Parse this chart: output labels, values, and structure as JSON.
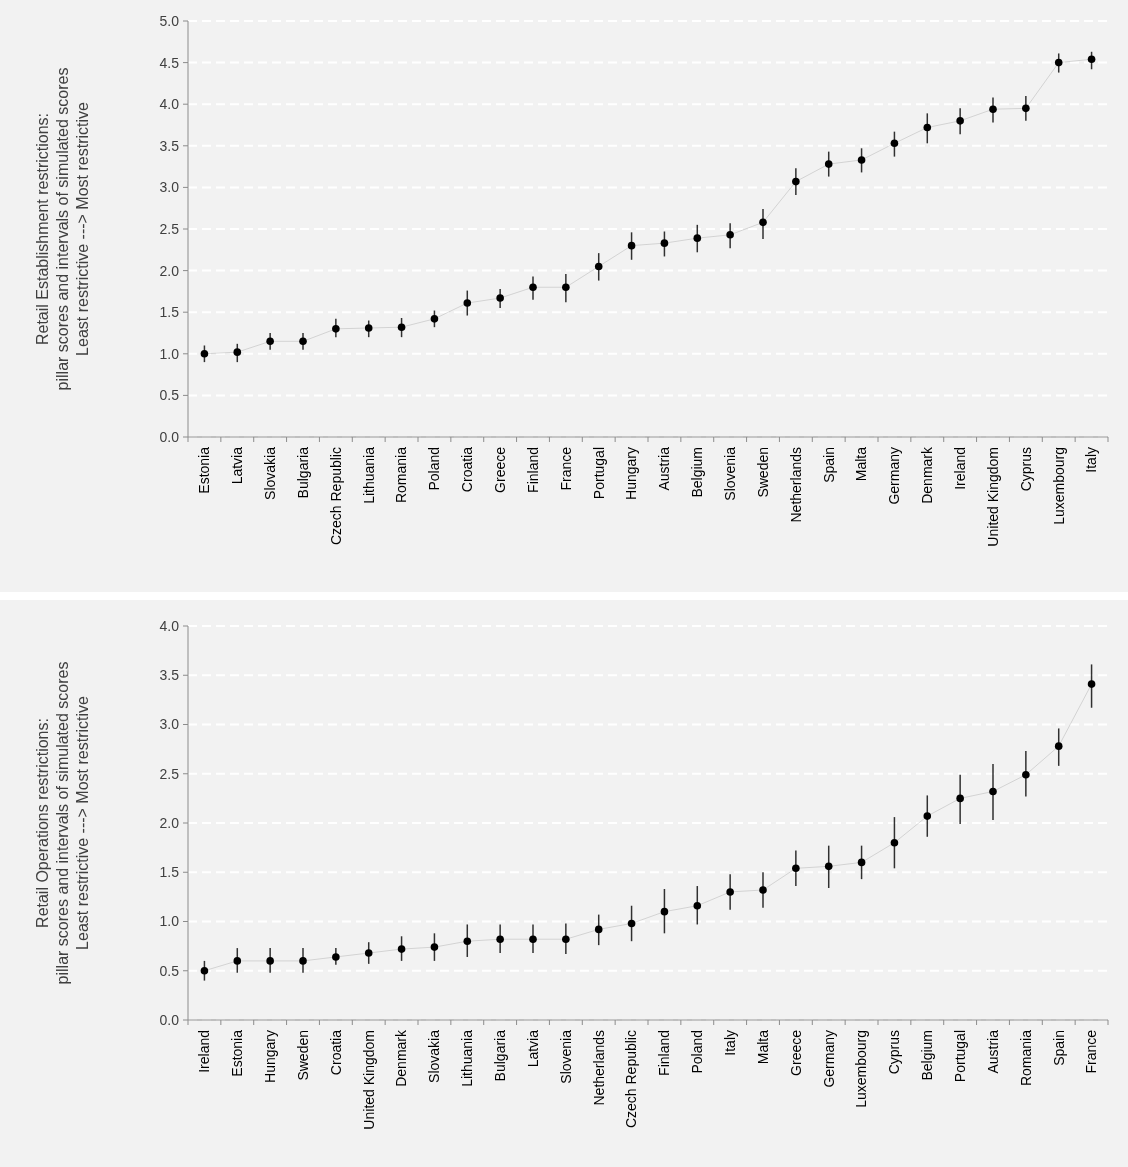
{
  "chart_data": [
    {
      "type": "line",
      "ylabel": "Retail Establishment restrictions:\npillar scores and intervals of simulated scores\nLeast restrictive ---> Most restrictive",
      "categories": [
        "Estonia",
        "Latvia",
        "Slovakia",
        "Bulgaria",
        "Czech Republic",
        "Lithuania",
        "Romania",
        "Poland",
        "Croatia",
        "Greece",
        "Finland",
        "France",
        "Portugal",
        "Hungary",
        "Austria",
        "Belgium",
        "Slovenia",
        "Sweden",
        "Netherlands",
        "Spain",
        "Malta",
        "Germany",
        "Denmark",
        "Ireland",
        "United Kingdom",
        "Cyprus",
        "Luxembourg",
        "Italy"
      ],
      "series": [
        {
          "color": "#000000",
          "values": [
            1.0,
            1.02,
            1.15,
            1.15,
            1.3,
            1.31,
            1.32,
            1.42,
            1.61,
            1.67,
            1.8,
            1.8,
            2.05,
            2.3,
            2.33,
            2.39,
            2.43,
            2.58,
            3.07,
            3.28,
            3.33,
            3.53,
            3.72,
            3.8,
            3.94,
            3.95,
            4.5,
            4.54
          ],
          "errors": [
            [
              0.9,
              1.1
            ],
            [
              0.9,
              1.12
            ],
            [
              1.05,
              1.25
            ],
            [
              1.05,
              1.25
            ],
            [
              1.2,
              1.42
            ],
            [
              1.2,
              1.4
            ],
            [
              1.2,
              1.43
            ],
            [
              1.32,
              1.52
            ],
            [
              1.46,
              1.76
            ],
            [
              1.55,
              1.78
            ],
            [
              1.65,
              1.93
            ],
            [
              1.62,
              1.96
            ],
            [
              1.88,
              2.21
            ],
            [
              2.13,
              2.46
            ],
            [
              2.17,
              2.47
            ],
            [
              2.22,
              2.55
            ],
            [
              2.27,
              2.57
            ],
            [
              2.38,
              2.74
            ],
            [
              2.91,
              3.23
            ],
            [
              3.13,
              3.43
            ],
            [
              3.18,
              3.47
            ],
            [
              3.37,
              3.67
            ],
            [
              3.53,
              3.89
            ],
            [
              3.64,
              3.95
            ],
            [
              3.78,
              4.08
            ],
            [
              3.8,
              4.1
            ],
            [
              4.38,
              4.61
            ],
            [
              4.42,
              4.63
            ]
          ]
        }
      ],
      "ylim": [
        0,
        5
      ],
      "yticks": [
        {
          "value": 0,
          "label": "0.0"
        },
        {
          "value": 0.5,
          "label": "0.5"
        },
        {
          "value": 1,
          "label": "1.0"
        },
        {
          "value": 1.5,
          "label": "1.5"
        },
        {
          "value": 2,
          "label": "2.0"
        },
        {
          "value": 2.5,
          "label": "2.5"
        },
        {
          "value": 3,
          "label": "3.0"
        },
        {
          "value": 3.5,
          "label": "3.5"
        },
        {
          "value": 4,
          "label": "4.0"
        },
        {
          "value": 4.5,
          "label": "4.5"
        },
        {
          "value": 5,
          "label": "5.0"
        }
      ],
      "grid": "y",
      "marker": "circle"
    },
    {
      "type": "line",
      "ylabel": "Retail Operations restrictions:\npillar scores and intervals of simulated scores\nLeast restrictive ---> Most restrictive",
      "categories": [
        "Ireland",
        "Estonia",
        "Hungary",
        "Sweden",
        "Croatia",
        "United Kingdom",
        "Denmark",
        "Slovakia",
        "Lithuania",
        "Bulgaria",
        "Latvia",
        "Slovenia",
        "Netherlands",
        "Czech Republic",
        "Finland",
        "Poland",
        "Italy",
        "Malta",
        "Greece",
        "Germany",
        "Luxembourg",
        "Cyprus",
        "Belgium",
        "Portugal",
        "Austria",
        "Romania",
        "Spain",
        "France"
      ],
      "series": [
        {
          "color": "#000000",
          "values": [
            0.5,
            0.6,
            0.6,
            0.6,
            0.64,
            0.68,
            0.72,
            0.74,
            0.8,
            0.82,
            0.82,
            0.82,
            0.92,
            0.98,
            1.1,
            1.16,
            1.3,
            1.32,
            1.54,
            1.56,
            1.6,
            1.8,
            2.07,
            2.25,
            2.32,
            2.49,
            2.78,
            3.41
          ],
          "errors": [
            [
              0.4,
              0.6
            ],
            [
              0.48,
              0.73
            ],
            [
              0.48,
              0.73
            ],
            [
              0.48,
              0.73
            ],
            [
              0.56,
              0.73
            ],
            [
              0.57,
              0.79
            ],
            [
              0.6,
              0.85
            ],
            [
              0.6,
              0.88
            ],
            [
              0.64,
              0.97
            ],
            [
              0.68,
              0.97
            ],
            [
              0.68,
              0.97
            ],
            [
              0.67,
              0.98
            ],
            [
              0.76,
              1.07
            ],
            [
              0.8,
              1.16
            ],
            [
              0.88,
              1.33
            ],
            [
              0.97,
              1.36
            ],
            [
              1.12,
              1.48
            ],
            [
              1.14,
              1.5
            ],
            [
              1.36,
              1.72
            ],
            [
              1.34,
              1.77
            ],
            [
              1.43,
              1.77
            ],
            [
              1.54,
              2.06
            ],
            [
              1.86,
              2.28
            ],
            [
              1.99,
              2.49
            ],
            [
              2.03,
              2.6
            ],
            [
              2.27,
              2.73
            ],
            [
              2.58,
              2.96
            ],
            [
              3.17,
              3.61
            ]
          ]
        }
      ],
      "ylim": [
        0,
        4
      ],
      "yticks": [
        {
          "value": 0,
          "label": "0.0"
        },
        {
          "value": 0.5,
          "label": "0.5"
        },
        {
          "value": 1,
          "label": "1.0"
        },
        {
          "value": 1.5,
          "label": "1.5"
        },
        {
          "value": 2,
          "label": "2.0"
        },
        {
          "value": 2.5,
          "label": "2.5"
        },
        {
          "value": 3,
          "label": "3.0"
        },
        {
          "value": 3.5,
          "label": "3.5"
        },
        {
          "value": 4,
          "label": "4.0"
        }
      ],
      "grid": "y",
      "marker": "circle"
    }
  ]
}
